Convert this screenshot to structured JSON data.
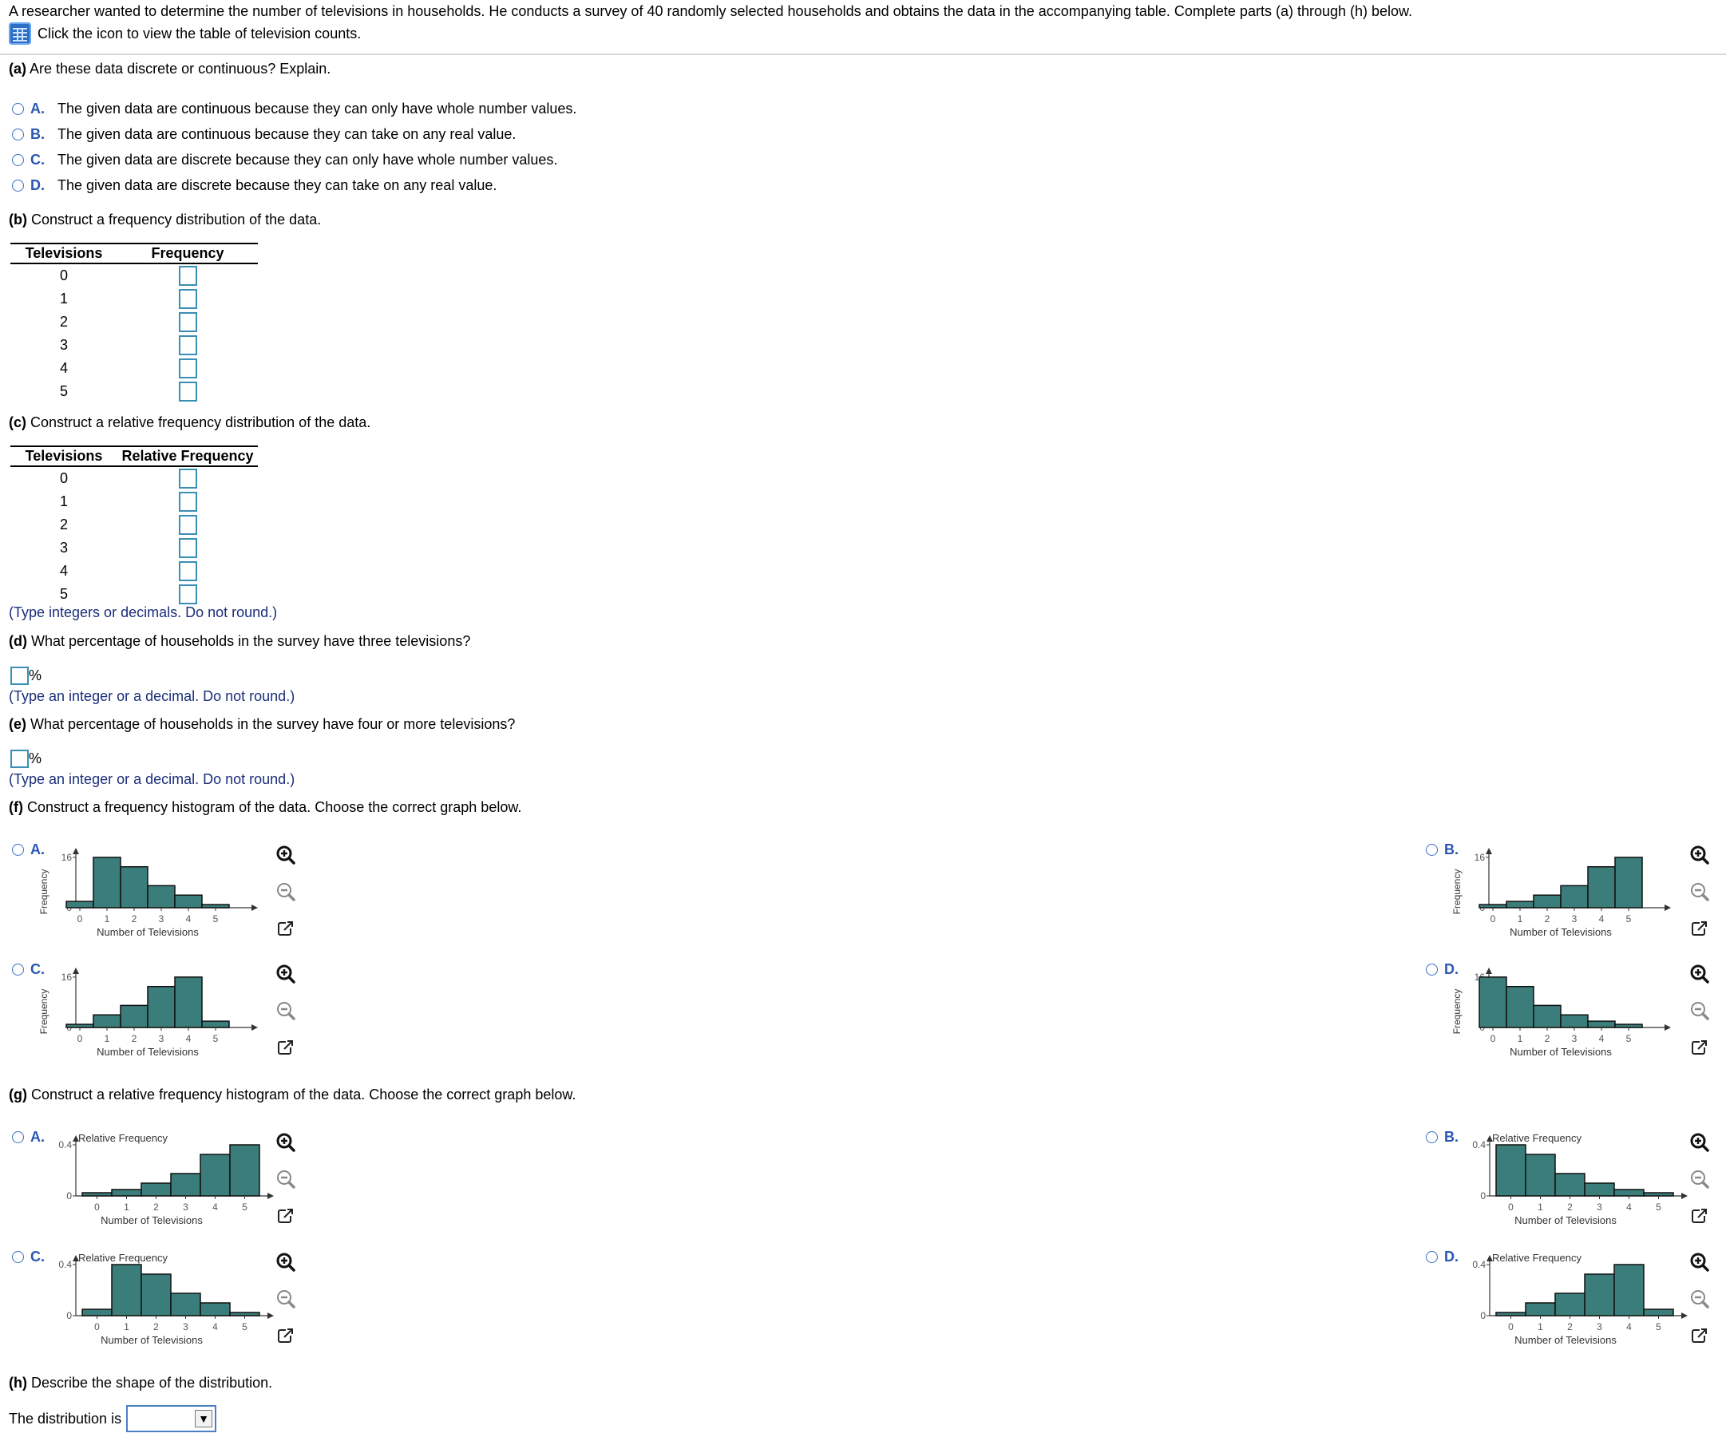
{
  "intro_text": "A researcher wanted to determine the number of televisions in households. He conducts a survey of 40 randomly selected households and obtains the data in the accompanying table. Complete parts (a) through (h) below.",
  "icon_link_text": "Click the icon to view the table of television counts.",
  "part_a": {
    "label": "(a)",
    "question": "Are these data discrete or continuous? Explain.",
    "options": [
      {
        "letter": "A.",
        "text": "The given data are continuous because they can only have whole number values."
      },
      {
        "letter": "B.",
        "text": "The given data are continuous because they can take on any real value."
      },
      {
        "letter": "C.",
        "text": "The given data are discrete because they can only have whole number values."
      },
      {
        "letter": "D.",
        "text": "The given data are discrete because they can take on any real value."
      }
    ]
  },
  "part_b": {
    "label": "(b)",
    "question": "Construct a frequency distribution of the data.",
    "col1": "Televisions",
    "col2": "Frequency",
    "rows": [
      "0",
      "1",
      "2",
      "3",
      "4",
      "5"
    ]
  },
  "part_c": {
    "label": "(c)",
    "question": "Construct a relative frequency distribution of the data.",
    "col1": "Televisions",
    "col2": "Relative Frequency",
    "rows": [
      "0",
      "1",
      "2",
      "3",
      "4",
      "5"
    ],
    "hint": "(Type integers or decimals. Do not round.)"
  },
  "part_d": {
    "label": "(d)",
    "question": "What percentage of households in the survey have three televisions?",
    "unit": "%",
    "hint": "(Type an integer or a decimal. Do not round.)"
  },
  "part_e": {
    "label": "(e)",
    "question": "What percentage of households in the survey have four or more televisions?",
    "unit": "%",
    "hint": "(Type an integer or a decimal. Do not round.)"
  },
  "part_f": {
    "label": "(f)",
    "question": "Construct a frequency histogram of the data. Choose the correct graph below.",
    "options": [
      "A.",
      "B.",
      "C.",
      "D."
    ]
  },
  "part_g": {
    "label": "(g)",
    "question": "Construct a relative frequency histogram of the data. Choose the correct graph below.",
    "options": [
      "A.",
      "B.",
      "C.",
      "D."
    ]
  },
  "part_h": {
    "label": "(h)",
    "question": "Describe the shape of the distribution.",
    "prompt": "The distribution is",
    "selected_value": ""
  },
  "colors": {
    "bar": "#3a7d7a",
    "accent": "#2a57b3",
    "box": "#3a8fb5"
  },
  "chart_data": [
    {
      "id": "f-A",
      "type": "bar",
      "xlabel": "Number of Televisions",
      "ylabel": "Frequency",
      "ymax_label": "16",
      "ylim": [
        0,
        18
      ],
      "categories": [
        "0",
        "1",
        "2",
        "3",
        "4",
        "5"
      ],
      "values": [
        2,
        16,
        13,
        7,
        4,
        1
      ]
    },
    {
      "id": "f-B",
      "type": "bar",
      "xlabel": "Number of Televisions",
      "ylabel": "Frequency",
      "ymax_label": "16",
      "ylim": [
        0,
        18
      ],
      "categories": [
        "0",
        "1",
        "2",
        "3",
        "4",
        "5"
      ],
      "values": [
        1,
        2,
        4,
        7,
        13,
        16
      ]
    },
    {
      "id": "f-C",
      "type": "bar",
      "xlabel": "Number of Televisions",
      "ylabel": "Frequency",
      "ymax_label": "16",
      "ylim": [
        0,
        18
      ],
      "categories": [
        "0",
        "1",
        "2",
        "3",
        "4",
        "5"
      ],
      "values": [
        1,
        4,
        7,
        13,
        16,
        2
      ]
    },
    {
      "id": "f-D",
      "type": "bar",
      "xlabel": "Number of Televisions",
      "ylabel": "Frequency",
      "ymax_label": "16",
      "ylim": [
        0,
        18
      ],
      "categories": [
        "0",
        "1",
        "2",
        "3",
        "4",
        "5"
      ],
      "values": [
        16,
        13,
        7,
        4,
        2,
        1
      ]
    },
    {
      "id": "g-A",
      "type": "bar",
      "xlabel": "Number of Televisions",
      "ylabel": "Relative Frequency",
      "ymax_label": "0.4",
      "ylim": [
        0,
        0.45
      ],
      "categories": [
        "0",
        "1",
        "2",
        "3",
        "4",
        "5"
      ],
      "values": [
        0.025,
        0.05,
        0.1,
        0.175,
        0.325,
        0.4
      ]
    },
    {
      "id": "g-B",
      "type": "bar",
      "xlabel": "Number of Televisions",
      "ylabel": "Relative Frequency",
      "ymax_label": "0.4",
      "ylim": [
        0,
        0.45
      ],
      "categories": [
        "0",
        "1",
        "2",
        "3",
        "4",
        "5"
      ],
      "values": [
        0.4,
        0.325,
        0.175,
        0.1,
        0.05,
        0.025
      ]
    },
    {
      "id": "g-C",
      "type": "bar",
      "xlabel": "Number of Televisions",
      "ylabel": "Relative Frequency",
      "ymax_label": "0.4",
      "ylim": [
        0,
        0.45
      ],
      "categories": [
        "0",
        "1",
        "2",
        "3",
        "4",
        "5"
      ],
      "values": [
        0.05,
        0.4,
        0.325,
        0.175,
        0.1,
        0.025
      ]
    },
    {
      "id": "g-D",
      "type": "bar",
      "xlabel": "Number of Televisions",
      "ylabel": "Relative Frequency",
      "ymax_label": "0.4",
      "ylim": [
        0,
        0.45
      ],
      "categories": [
        "0",
        "1",
        "2",
        "3",
        "4",
        "5"
      ],
      "values": [
        0.025,
        0.1,
        0.175,
        0.325,
        0.4,
        0.05
      ]
    }
  ]
}
